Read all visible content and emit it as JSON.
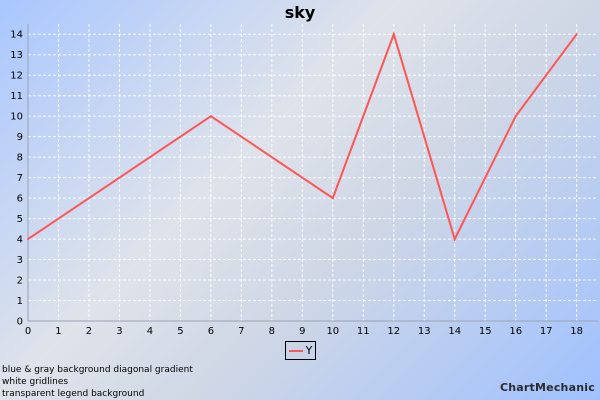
{
  "chart_data": {
    "type": "line",
    "title": "sky",
    "xlabel": "",
    "ylabel": "",
    "x": [
      0,
      6,
      10,
      12,
      14,
      16,
      18
    ],
    "series": [
      {
        "name": "Y",
        "values": [
          4,
          10,
          6,
          14,
          4,
          10,
          14
        ],
        "color": "#ff5555"
      }
    ],
    "xlim": [
      0,
      18.7
    ],
    "ylim": [
      0,
      14.5
    ],
    "x_ticks": [
      "0",
      "1",
      "2",
      "3",
      "4",
      "5",
      "6",
      "7",
      "8",
      "9",
      "10",
      "11",
      "12",
      "13",
      "14",
      "15",
      "16",
      "17",
      "18"
    ],
    "y_ticks": [
      "0",
      "1",
      "2",
      "3",
      "4",
      "5",
      "6",
      "7",
      "8",
      "9",
      "10",
      "11",
      "12",
      "13",
      "14"
    ],
    "grid": true,
    "grid_color": "#ffffff",
    "legend_position": "bottom-center"
  },
  "notes": [
    "blue & gray background diagonal gradient",
    "white gridlines",
    "transparent legend background"
  ],
  "watermark": "ChartMechanic"
}
